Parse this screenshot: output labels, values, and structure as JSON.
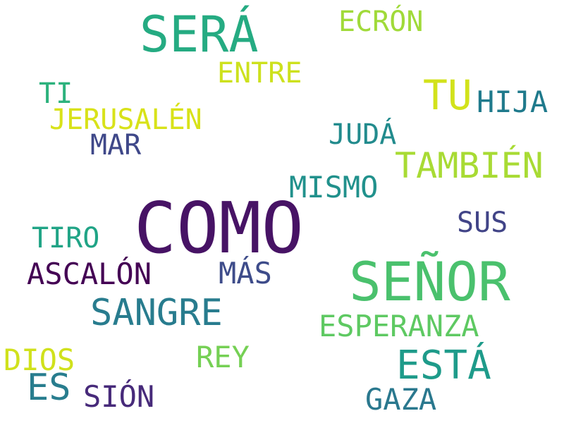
{
  "word_cloud": {
    "background_color": "#ffffff",
    "words": [
      {
        "key": "sera",
        "text": "SERÁ",
        "color": "#25ab82"
      },
      {
        "key": "ecron",
        "text": "ECRÓN",
        "color": "#a0da39"
      },
      {
        "key": "entre",
        "text": "ENTRE",
        "color": "#cde11d"
      },
      {
        "key": "tu",
        "text": "TU",
        "color": "#d2e21b"
      },
      {
        "key": "ti",
        "text": "TI",
        "color": "#2db27d"
      },
      {
        "key": "hija",
        "text": "HIJA",
        "color": "#1f7a8c"
      },
      {
        "key": "jerusalen",
        "text": "JERUSALÉN",
        "color": "#d8e219"
      },
      {
        "key": "juda",
        "text": "JUDÁ",
        "color": "#228b8d"
      },
      {
        "key": "mar",
        "text": "MAR",
        "color": "#3f4889"
      },
      {
        "key": "tambien",
        "text": "TAMBIÉN",
        "color": "#a8db34"
      },
      {
        "key": "mismo",
        "text": "MISMO",
        "color": "#21918c"
      },
      {
        "key": "como",
        "text": "COMO",
        "color": "#471365"
      },
      {
        "key": "sus",
        "text": "SUS",
        "color": "#414487"
      },
      {
        "key": "tiro",
        "text": "TIRO",
        "color": "#20a486"
      },
      {
        "key": "senor",
        "text": "SEÑOR",
        "color": "#4ac16d"
      },
      {
        "key": "ascalon",
        "text": "ASCALÓN",
        "color": "#440154"
      },
      {
        "key": "mas",
        "text": "MÁS",
        "color": "#3e4c8a"
      },
      {
        "key": "sangre",
        "text": "SANGRE",
        "color": "#287c8e"
      },
      {
        "key": "esperanza",
        "text": "ESPERANZA",
        "color": "#5ec962"
      },
      {
        "key": "rey",
        "text": "REY",
        "color": "#75d054"
      },
      {
        "key": "dios",
        "text": "DIOS",
        "color": "#d0e11c"
      },
      {
        "key": "esta",
        "text": "ESTÁ",
        "color": "#1e9b8a"
      },
      {
        "key": "es",
        "text": "ES",
        "color": "#287d8e"
      },
      {
        "key": "sion",
        "text": "SIÓN",
        "color": "#472a7a"
      },
      {
        "key": "gaza",
        "text": "GAZA",
        "color": "#2a788e"
      }
    ]
  }
}
